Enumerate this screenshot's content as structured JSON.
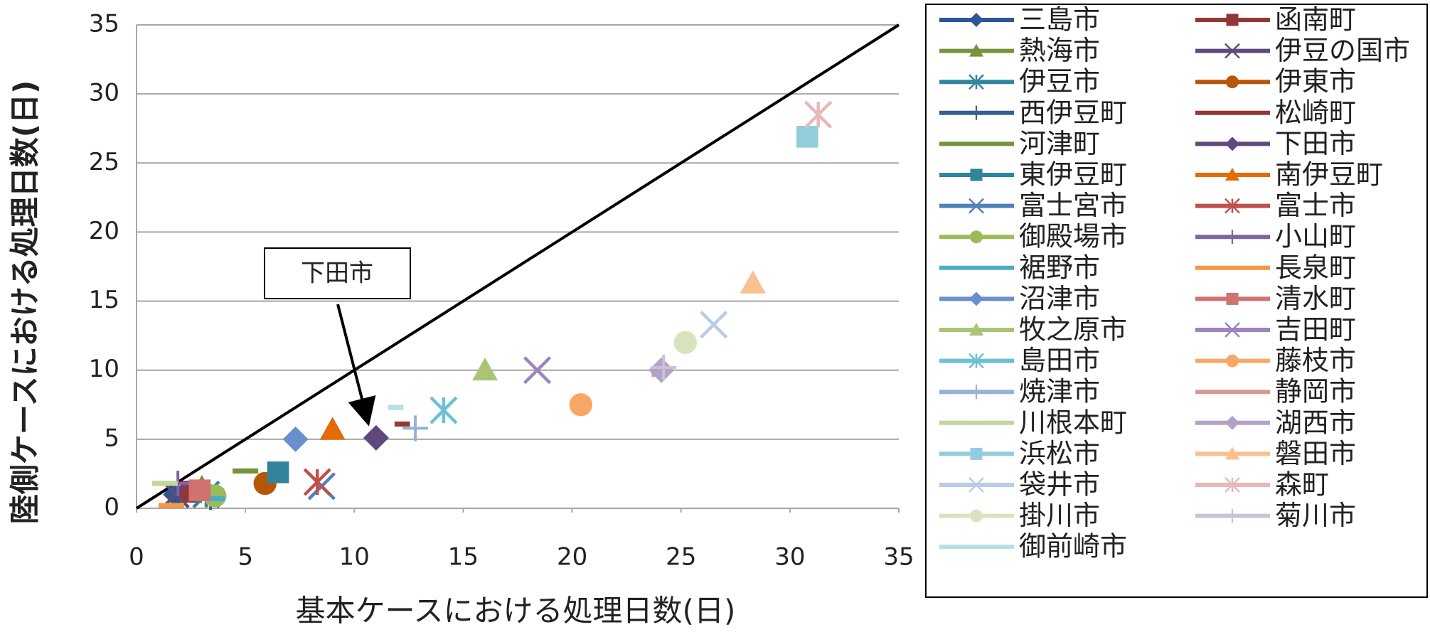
{
  "chart_data": {
    "type": "scatter",
    "xlabel": "基本ケースにおける処理日数(日)",
    "ylabel": "陸側ケースにおける処理日数(日)",
    "xlim": [
      0,
      35
    ],
    "ylim": [
      0,
      35
    ],
    "xticks": [
      0,
      5,
      10,
      15,
      20,
      25,
      30,
      35
    ],
    "yticks": [
      0,
      5,
      10,
      15,
      20,
      25,
      30,
      35
    ],
    "grid": true,
    "legend": "right",
    "reference_line": {
      "x": [
        0,
        35
      ],
      "y": [
        0,
        35
      ],
      "color": "#000000"
    },
    "annotations": [
      {
        "text": "下田市",
        "x": 11.0,
        "y": 5.1
      }
    ],
    "series": [
      {
        "name": "三島市",
        "color": "#2e5597",
        "marker": "diamond",
        "x": [
          1.8
        ],
        "values": [
          1.0
        ]
      },
      {
        "name": "函南町",
        "color": "#943634",
        "marker": "square",
        "x": [
          2.5
        ],
        "values": [
          1.2
        ]
      },
      {
        "name": "熱海市",
        "color": "#77933c",
        "marker": "triangle",
        "x": [
          3.0
        ],
        "values": [
          1.5
        ]
      },
      {
        "name": "伊豆の国市",
        "color": "#604a7b",
        "marker": "x",
        "x": [
          1.8
        ],
        "values": [
          1.0
        ]
      },
      {
        "name": "伊豆市",
        "color": "#31859c",
        "marker": "star",
        "x": [
          3.2
        ],
        "values": [
          1.0
        ]
      },
      {
        "name": "伊東市",
        "color": "#b65708",
        "marker": "circle",
        "x": [
          5.9
        ],
        "values": [
          1.8
        ]
      },
      {
        "name": "西伊豆町",
        "color": "#366092",
        "marker": "plus",
        "x": [
          3.4
        ],
        "values": [
          0.8
        ]
      },
      {
        "name": "松崎町",
        "color": "#953735",
        "marker": "dash",
        "x": [
          12.2
        ],
        "values": [
          6.1
        ]
      },
      {
        "name": "河津町",
        "color": "#76923c",
        "marker": "longdash",
        "x": [
          5.0
        ],
        "values": [
          2.7
        ]
      },
      {
        "name": "下田市",
        "color": "#5f497a",
        "marker": "diamond",
        "x": [
          11.0
        ],
        "values": [
          5.1
        ]
      },
      {
        "name": "東伊豆町",
        "color": "#31849b",
        "marker": "square",
        "x": [
          6.5
        ],
        "values": [
          2.6
        ]
      },
      {
        "name": "南伊豆町",
        "color": "#e36c09",
        "marker": "triangle",
        "x": [
          9.0
        ],
        "values": [
          5.7
        ]
      },
      {
        "name": "富士宮市",
        "color": "#4f81bd",
        "marker": "x",
        "x": [
          8.5
        ],
        "values": [
          1.6
        ]
      },
      {
        "name": "富士市",
        "color": "#c0504d",
        "marker": "star",
        "x": [
          8.3
        ],
        "values": [
          1.9
        ]
      },
      {
        "name": "御殿場市",
        "color": "#9bbb59",
        "marker": "circle",
        "x": [
          3.6
        ],
        "values": [
          0.9
        ]
      },
      {
        "name": "小山町",
        "color": "#8064a2",
        "marker": "plus",
        "x": [
          1.9
        ],
        "values": [
          1.8
        ]
      },
      {
        "name": "裾野市",
        "color": "#4bacc6",
        "marker": "dash",
        "x": [
          3.7
        ],
        "values": [
          0.7
        ]
      },
      {
        "name": "長泉町",
        "color": "#f79646",
        "marker": "longdash",
        "x": [
          1.6
        ],
        "values": [
          0.2
        ]
      },
      {
        "name": "沼津市",
        "color": "#6a8fcc",
        "marker": "diamond",
        "x": [
          7.3
        ],
        "values": [
          5.0
        ]
      },
      {
        "name": "清水町",
        "color": "#d07270",
        "marker": "square",
        "x": [
          2.9
        ],
        "values": [
          1.3
        ]
      },
      {
        "name": "牧之原市",
        "color": "#a9c574",
        "marker": "triangle",
        "x": [
          16.0
        ],
        "values": [
          10.0
        ]
      },
      {
        "name": "吉田町",
        "color": "#9c84bc",
        "marker": "x",
        "x": [
          18.4
        ],
        "values": [
          10.0
        ]
      },
      {
        "name": "島田市",
        "color": "#6cbfd6",
        "marker": "star",
        "x": [
          14.1
        ],
        "values": [
          7.1
        ]
      },
      {
        "name": "藤枝市",
        "color": "#f9a767",
        "marker": "circle",
        "x": [
          20.4
        ],
        "values": [
          7.5
        ]
      },
      {
        "name": "焼津市",
        "color": "#95b3d7",
        "marker": "plus",
        "x": [
          12.8
        ],
        "values": [
          5.8
        ]
      },
      {
        "name": "静岡市",
        "color": "#d99694",
        "marker": "dash",
        "x": [
          24.0
        ],
        "values": [
          9.7
        ]
      },
      {
        "name": "川根本町",
        "color": "#c3d69b",
        "marker": "longdash",
        "x": [
          1.3
        ],
        "values": [
          1.8
        ]
      },
      {
        "name": "湖西市",
        "color": "#b2a2c7",
        "marker": "diamond",
        "x": [
          24.1
        ],
        "values": [
          10.0
        ]
      },
      {
        "name": "浜松市",
        "color": "#93cddd",
        "marker": "square",
        "x": [
          30.8
        ],
        "values": [
          26.9
        ]
      },
      {
        "name": "磐田市",
        "color": "#fac090",
        "marker": "triangle",
        "x": [
          28.3
        ],
        "values": [
          16.3
        ]
      },
      {
        "name": "袋井市",
        "color": "#b9cde5",
        "marker": "x",
        "x": [
          26.5
        ],
        "values": [
          13.3
        ]
      },
      {
        "name": "森町",
        "color": "#e6b9b8",
        "marker": "star",
        "x": [
          31.3
        ],
        "values": [
          28.5
        ]
      },
      {
        "name": "掛川市",
        "color": "#d7e4bd",
        "marker": "circle",
        "x": [
          25.2
        ],
        "values": [
          12.0
        ]
      },
      {
        "name": "菊川市",
        "color": "#ccc1da",
        "marker": "plus",
        "x": [
          24.2
        ],
        "values": [
          10.2
        ]
      },
      {
        "name": "御前崎市",
        "color": "#b7dee8",
        "marker": "dash",
        "x": [
          11.9
        ],
        "values": [
          7.3
        ]
      }
    ]
  }
}
